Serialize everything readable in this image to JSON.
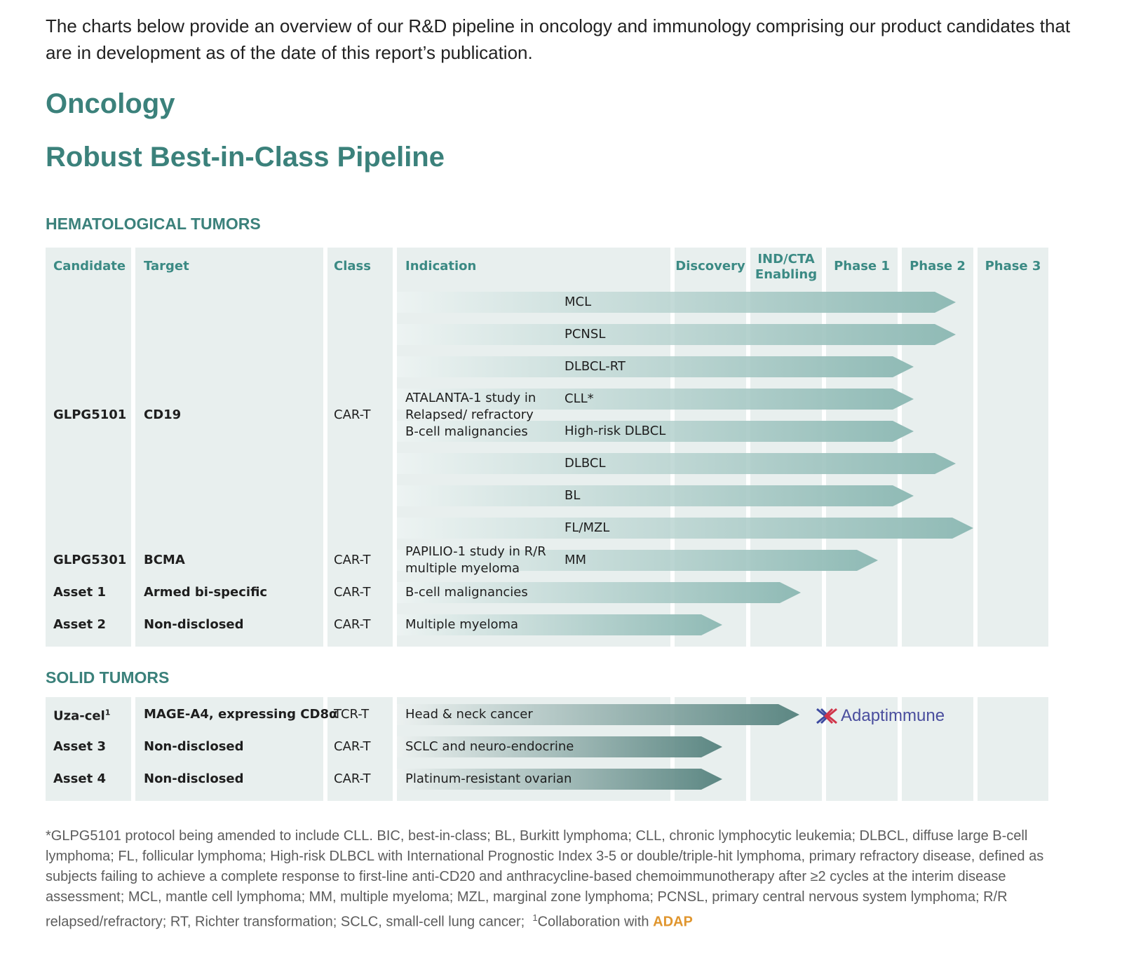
{
  "intro": "The charts below provide an overview of our R&D pipeline in oncology and immunology comprising our product candidates that are in development as of the date of this report’s publication.",
  "section_title": "Oncology",
  "pipeline_title": "Robust Best-in-Class Pipeline",
  "columns": [
    "Candidate",
    "Target",
    "Class",
    "Indication",
    "Discovery",
    "IND/CTA Enabling",
    "Phase 1",
    "Phase 2",
    "Phase 3"
  ],
  "hematological": {
    "heading": "HEMATOLOGICAL TUMORS",
    "groups": [
      {
        "candidate": "GLPG5101",
        "target": "CD19",
        "class": "CAR-T",
        "indication": "ATALANTA-1 study in Relapsed/ refractory B-cell malignancies",
        "programs": [
          "MCL",
          "PCNSL",
          "DLBCL-RT",
          "CLL*",
          "High-risk DLBCL",
          "DLBCL",
          "BL",
          "FL/MZL"
        ]
      },
      {
        "candidate": "GLPG5301",
        "target": "BCMA",
        "class": "CAR-T",
        "indication": "PAPILIO-1 study in R/R multiple myeloma",
        "programs": [
          "MM"
        ]
      },
      {
        "candidate": "Asset 1",
        "target": "Armed bi-specific",
        "class": "CAR-T",
        "indication": "B-cell malignancies"
      },
      {
        "candidate": "Asset 2",
        "target": "Non-disclosed",
        "class": "CAR-T",
        "indication": "Multiple myeloma"
      }
    ]
  },
  "solid": {
    "heading": "SOLID TUMORS",
    "groups": [
      {
        "candidate": "Uza-cel",
        "candidate_ref": "1",
        "target": "MAGE-A4, expressing CD8α",
        "class": "TCR-T",
        "indication": "Head & neck cancer",
        "partner_logo": "Adaptimmune"
      },
      {
        "candidate": "Asset 3",
        "target": "Non-disclosed",
        "class": "CAR-T",
        "indication": "SCLC and neuro-endocrine"
      },
      {
        "candidate": "Asset 4",
        "target": "Non-disclosed",
        "class": "CAR-T",
        "indication": "Platinum-resistant ovarian"
      }
    ]
  },
  "footnote": {
    "text": "*GLPG5101 protocol being amended to include CLL. BIC, best-in-class; BL, Burkitt lymphoma; CLL, chronic lymphocytic leukemia; DLBCL, diffuse large B-cell lymphoma; FL, follicular lymphoma; High-risk DLBCL with International Prognostic Index 3-5 or double/triple-hit lymphoma, primary refractory disease, defined as subjects failing to achieve a complete response to first-line anti-CD20 and anthracycline-based chemoimmunotherapy after ≥2 cycles at the interim disease assessment; MCL, mantle cell lymphoma; MM, multiple myeloma; MZL, marginal zone lymphoma; PCNSL, primary central nervous system lymphoma; R/R relapsed/refractory; RT, Richter transformation; SCLC, small-cell lung cancer;",
    "ref": "1",
    "collaboration": "Collaboration with",
    "partner": "ADAP"
  }
}
